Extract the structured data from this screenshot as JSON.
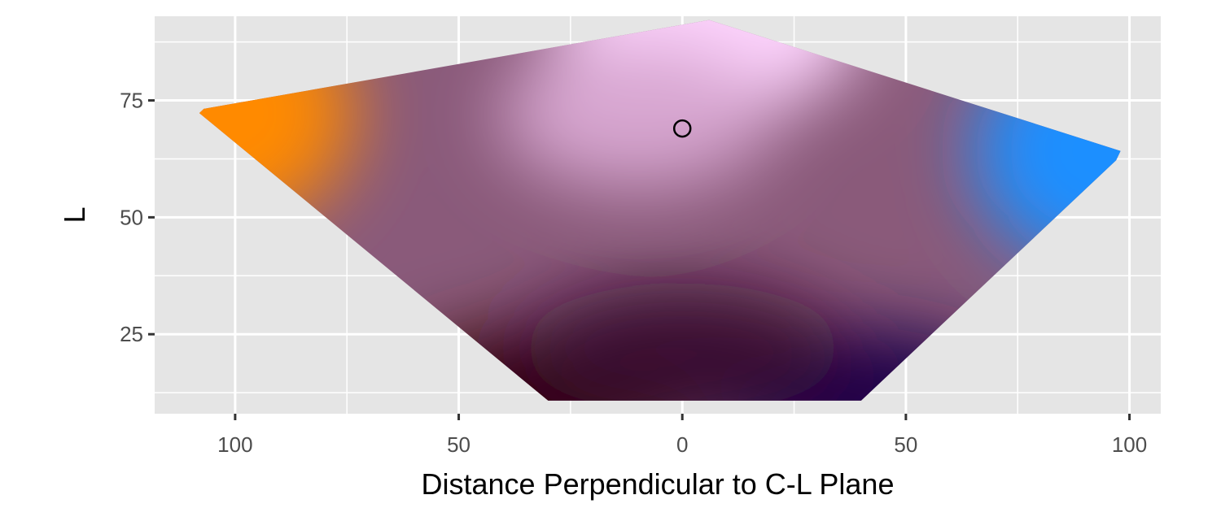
{
  "chart_data": {
    "type": "scatter",
    "title": "",
    "xlabel": "Distance Perpendicular to C-L Plane",
    "ylabel": "L",
    "xlim": [
      -118,
      107
    ],
    "ylim": [
      8,
      93
    ],
    "x_ticks": [
      {
        "value": -100,
        "label": "100"
      },
      {
        "value": -50,
        "label": "50"
      },
      {
        "value": 0,
        "label": "0"
      },
      {
        "value": 50,
        "label": "50"
      },
      {
        "value": 100,
        "label": "100"
      }
    ],
    "y_ticks": [
      {
        "value": 25,
        "label": "25"
      },
      {
        "value": 50,
        "label": "50"
      },
      {
        "value": 75,
        "label": "75"
      }
    ],
    "x_minor": [
      -75,
      -25,
      25,
      75
    ],
    "y_minor": [
      12.5,
      37.5,
      62.5,
      87.5
    ],
    "grid": true,
    "legend": "none",
    "gamut_outline": [
      {
        "x": 6,
        "y": 92.2
      },
      {
        "x": 98,
        "y": 64.2
      },
      {
        "x": 97,
        "y": 62.2
      },
      {
        "x": 40,
        "y": 10.8
      },
      {
        "x": 8,
        "y": 10.8
      },
      {
        "x": -30,
        "y": 10.8
      },
      {
        "x": -108,
        "y": 72.3
      },
      {
        "x": -107,
        "y": 73.2
      }
    ],
    "gamut_colors": {
      "top": "#ffd6ff",
      "left": "#ff8a00",
      "right": "#1f8fff",
      "bottom_left": "#300000",
      "bottom_right": "#1a0048",
      "mid_top": "#d7a6d0",
      "mid": "#8a5a7a",
      "mid_bottom": "#3a1030"
    },
    "marker": {
      "x": 0,
      "y": 69,
      "shape": "open-circle"
    },
    "colors": {
      "panel": "#e5e5e5",
      "grid": "#ffffff"
    }
  }
}
